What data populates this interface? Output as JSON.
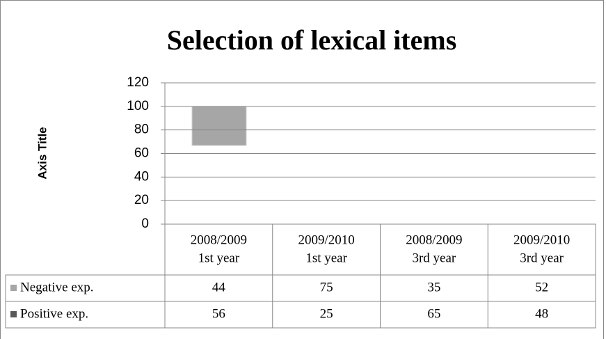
{
  "chart_data": {
    "type": "bar",
    "stacked": true,
    "title": "Selection of lexical items",
    "ylabel": "Axis Title",
    "categories": [
      [
        "2008/2009",
        "1st year"
      ],
      [
        "2009/2010",
        "1st year"
      ],
      [
        "2008/2009",
        "3rd year"
      ],
      [
        "2009/2010",
        "3rd year"
      ]
    ],
    "series": [
      {
        "name": "Negative exp.",
        "color": "#a6a6a6",
        "values": [
          44,
          75,
          35,
          52
        ]
      },
      {
        "name": "Positive exp.",
        "color": "#595959",
        "values": [
          56,
          25,
          65,
          48
        ]
      }
    ],
    "ylim": [
      0,
      120
    ],
    "yticks": [
      0,
      20,
      40,
      60,
      80,
      100,
      120
    ],
    "grid": true
  }
}
